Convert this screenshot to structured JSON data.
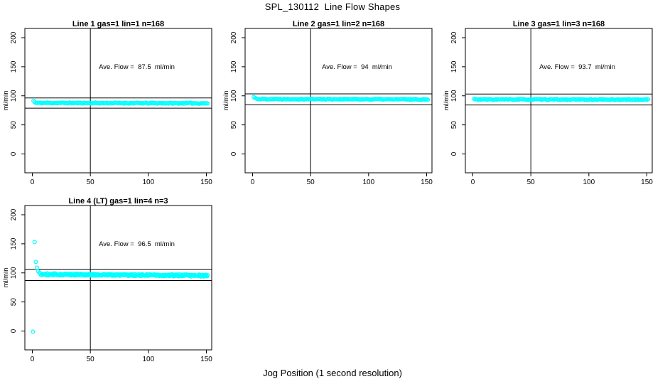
{
  "chart_data": {
    "type": "scatter",
    "title": "SPL_130112  Line Flow Shapes",
    "xlabel": "Jog Position (1 second resolution)",
    "ylabel": "ml/min",
    "marker": {
      "shape": "open-circle",
      "color": "#00FFFF",
      "radius": 2.4
    },
    "axis_color": "#000000",
    "shared_axes": {
      "xticks": [
        0,
        50,
        100,
        150
      ],
      "yticks": [
        0,
        50,
        100,
        150,
        200
      ],
      "xlim": [
        0,
        155
      ],
      "ylim": [
        -32,
        216
      ],
      "vline_x": 50,
      "grid": false
    },
    "annotation_anchor": {
      "x": 90,
      "y": 150
    },
    "panels": [
      {
        "title": "Line 1 gas=1 lin=1 n=168",
        "annotation": "Ave. Flow =  87.5  ml/min",
        "ave_flow": 87.5,
        "n_label": 168,
        "hlines": [
          96.3,
          78.8
        ],
        "series": {
          "transient": [
            [
              1,
              91.5
            ],
            [
              2,
              89.5
            ]
          ],
          "band": {
            "x_start": 3,
            "x_end": 151,
            "count": 168,
            "y_start": 87.8,
            "y_end": 87.2,
            "noise": 0.9,
            "seed": 11
          }
        }
      },
      {
        "title": "Line 2 gas=1 lin=2 n=168",
        "annotation": "Ave. Flow =  94  ml/min",
        "ave_flow": 94,
        "n_label": 168,
        "hlines": [
          103.4,
          84.6
        ],
        "series": {
          "transient": [
            [
              1,
              98
            ],
            [
              2,
              96.5
            ],
            [
              3,
              95.5
            ]
          ],
          "band": {
            "x_start": 4,
            "x_end": 151,
            "count": 168,
            "y_start": 94.6,
            "y_end": 93.9,
            "noise": 0.8,
            "seed": 22
          }
        }
      },
      {
        "title": "Line 3 gas=1 lin=3 n=168",
        "annotation": "Ave. Flow =  93.7  ml/min",
        "ave_flow": 93.7,
        "n_label": 168,
        "hlines": [
          103.1,
          84.3
        ],
        "series": {
          "transient": [
            [
              1,
              95
            ]
          ],
          "band": {
            "x_start": 2,
            "x_end": 151,
            "count": 168,
            "y_start": 93.8,
            "y_end": 93.5,
            "noise": 0.8,
            "seed": 33
          }
        }
      },
      {
        "title": "Line 4 (LT) gas=1 lin=4 n=3",
        "annotation": "Ave. Flow =  96.5  ml/min",
        "ave_flow": 96.5,
        "n_label": 3,
        "hlines": [
          106.2,
          86.9
        ],
        "series": {
          "transient": [
            [
              0.5,
              -1
            ],
            [
              2,
              153
            ],
            [
              3,
              119
            ],
            [
              4,
              109
            ],
            [
              5,
              103
            ],
            [
              6,
              100.5
            ]
          ],
          "band": {
            "x_start": 7,
            "x_end": 151,
            "count": 300,
            "y_start": 97.5,
            "y_end": 95.3,
            "noise": 1.7,
            "seed": 44
          }
        }
      }
    ]
  }
}
